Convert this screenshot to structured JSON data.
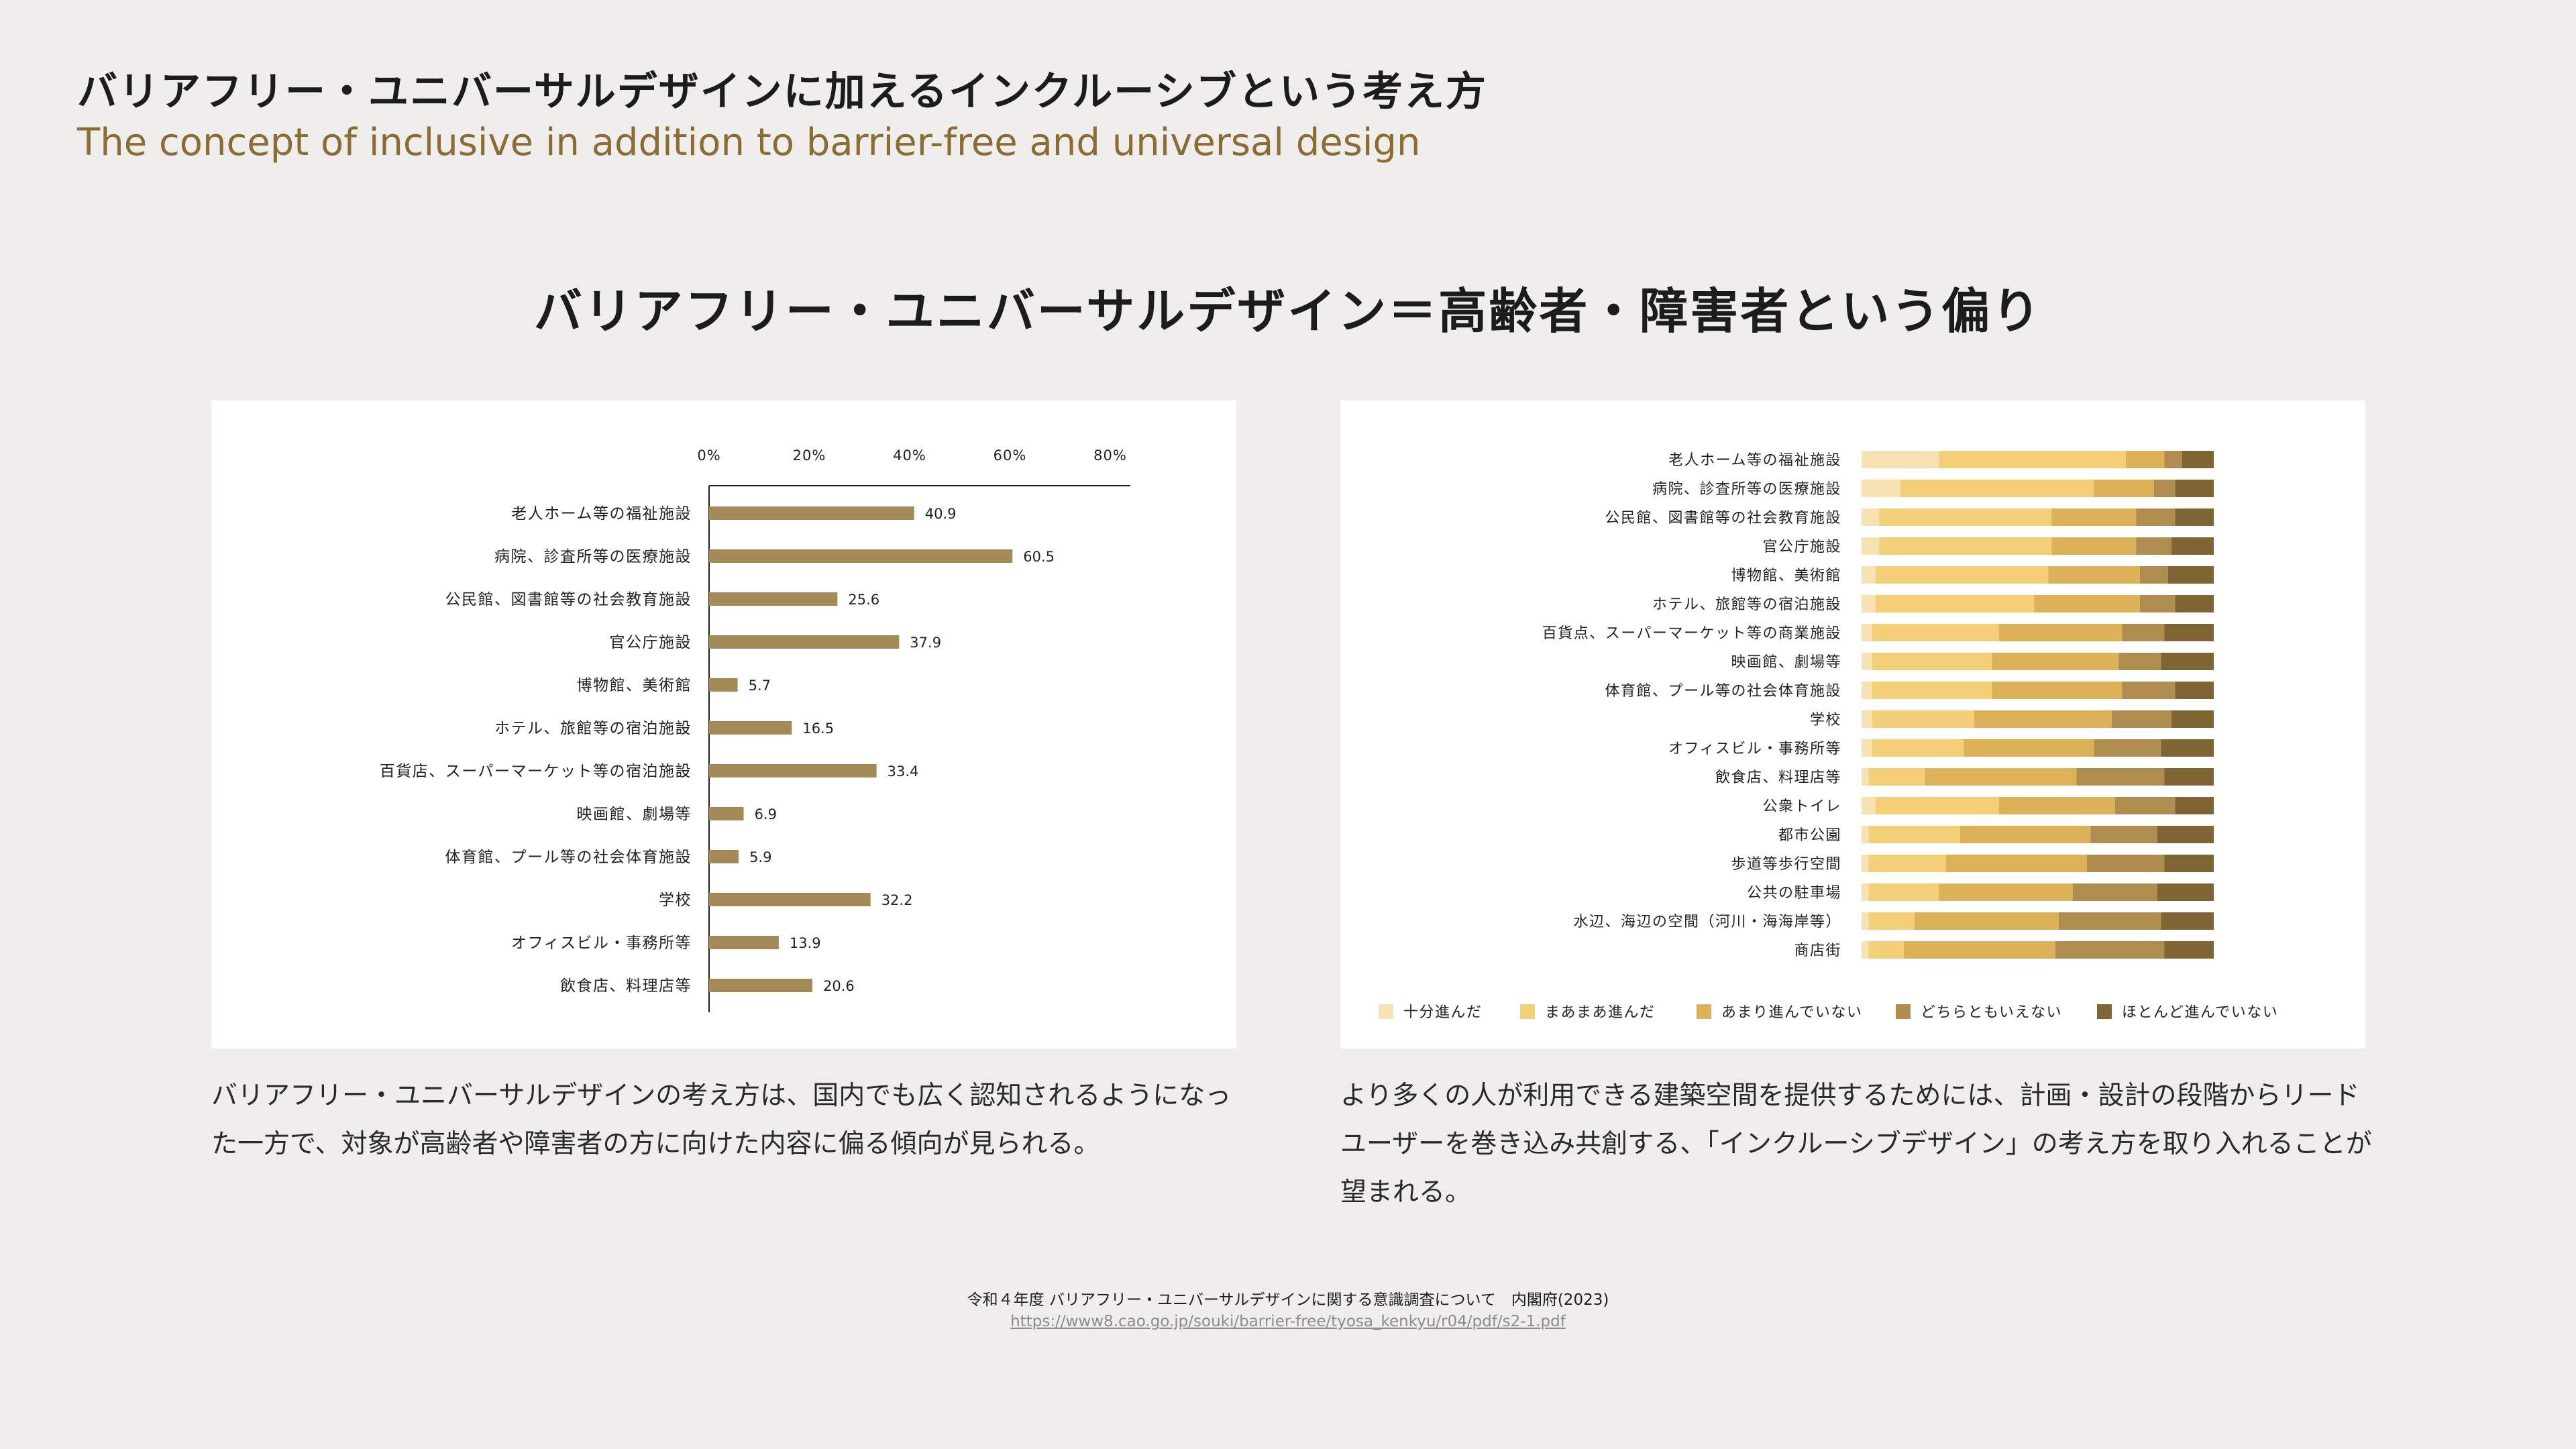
{
  "header": {
    "title": "バリアフリー・ユニバーサルデザインに加えるインクルーシブという考え方",
    "subtitle": "The concept of inclusive in addition to barrier-free and universal design"
  },
  "section_title": "バリアフリー・ユニバーサルデザイン＝高齢者・障害者という偏り",
  "captions": {
    "left": "バリアフリー・ユニバーサルデザインの考え方は、国内でも広く認知されるようになった一方で、対象が高齢者や障害者の方に向けた内容に偏る傾向が見られる。",
    "right": "より多くの人が利用できる建築空間を提供するためには、計画・設計の段階からリードユーザーを巻き込み共創する、「インクルーシブデザイン」の考え方を取り入れることが望まれる。"
  },
  "source": {
    "text": "令和４年度 バリアフリー・ユニバーサルデザインに関する意識調査について　内閣府(2023)",
    "url": "https://www8.cao.go.jp/souki/barrier-free/tyosa_kenkyu/r04/pdf/s2-1.pdf"
  },
  "colors": {
    "bar": "#a38a57",
    "stack": [
      "#f6e2b2",
      "#f3cf78",
      "#dcb157",
      "#af8d4e",
      "#7f6533"
    ]
  },
  "chart_data": [
    {
      "type": "bar",
      "orientation": "horizontal",
      "categories": [
        "老人ホーム等の福祉施設",
        "病院、診査所等の医療施設",
        "公民館、図書館等の社会教育施設",
        "官公庁施設",
        "博物館、美術館",
        "ホテル、旅館等の宿泊施設",
        "百貨店、スーパーマーケット等の宿泊施設",
        "映画館、劇場等",
        "体育館、プール等の社会体育施設",
        "学校",
        "オフィスビル・事務所等",
        "飲食店、料理店等"
      ],
      "values": [
        40.9,
        60.5,
        25.6,
        37.9,
        5.7,
        16.5,
        33.4,
        6.9,
        5.9,
        32.2,
        13.9,
        20.6
      ],
      "value_labels": [
        "40.9",
        "60.5",
        "25.6",
        "37.9",
        "5.7",
        "16.5",
        "33.4",
        "6.9",
        "5.9",
        "32.2",
        "13.9",
        "20.6"
      ],
      "xticks": [
        "0%",
        "20%",
        "40%",
        "60%",
        "80%"
      ],
      "xlim": [
        0,
        85
      ],
      "grid": false
    },
    {
      "type": "bar",
      "orientation": "horizontal",
      "stacked": "100%",
      "categories": [
        "老人ホーム等の福祉施設",
        "病院、診査所等の医療施設",
        "公民館、図書館等の社会教育施設",
        "官公庁施設",
        "博物館、美術館",
        "ホテル、旅館等の宿泊施設",
        "百貨点、スーパーマーケット等の商業施設",
        "映画館、劇場等",
        "体育館、プール等の社会体育施設",
        "学校",
        "オフィスビル・事務所等",
        "飲食店、料理店等",
        "公衆トイレ",
        "都市公園",
        "歩道等歩行空間",
        "公共の駐車場",
        "水辺、海辺の空間（河川・海海岸等）",
        "商店街"
      ],
      "series": [
        {
          "name": "十分進んだ",
          "values": [
            22,
            11,
            5,
            5,
            4,
            4,
            3,
            3,
            3,
            3,
            3,
            2,
            4,
            2,
            2,
            2,
            2,
            2
          ]
        },
        {
          "name": "まあまあ進んだ",
          "values": [
            53,
            55,
            49,
            49,
            49,
            45,
            36,
            34,
            34,
            29,
            26,
            16,
            35,
            26,
            22,
            20,
            13,
            10
          ]
        },
        {
          "name": "あまり進んでいない",
          "values": [
            11,
            17,
            24,
            24,
            26,
            30,
            35,
            36,
            37,
            39,
            37,
            43,
            33,
            37,
            40,
            38,
            41,
            43
          ]
        },
        {
          "name": "どちらともいえない",
          "values": [
            5,
            6,
            11,
            10,
            8,
            10,
            12,
            12,
            15,
            17,
            19,
            25,
            17,
            19,
            22,
            24,
            29,
            31
          ]
        },
        {
          "name": "ほとんど進んでいない",
          "values": [
            9,
            11,
            11,
            12,
            13,
            11,
            14,
            15,
            11,
            12,
            15,
            14,
            11,
            16,
            14,
            16,
            15,
            14
          ]
        }
      ],
      "legend": "bottom",
      "grid": false
    }
  ]
}
